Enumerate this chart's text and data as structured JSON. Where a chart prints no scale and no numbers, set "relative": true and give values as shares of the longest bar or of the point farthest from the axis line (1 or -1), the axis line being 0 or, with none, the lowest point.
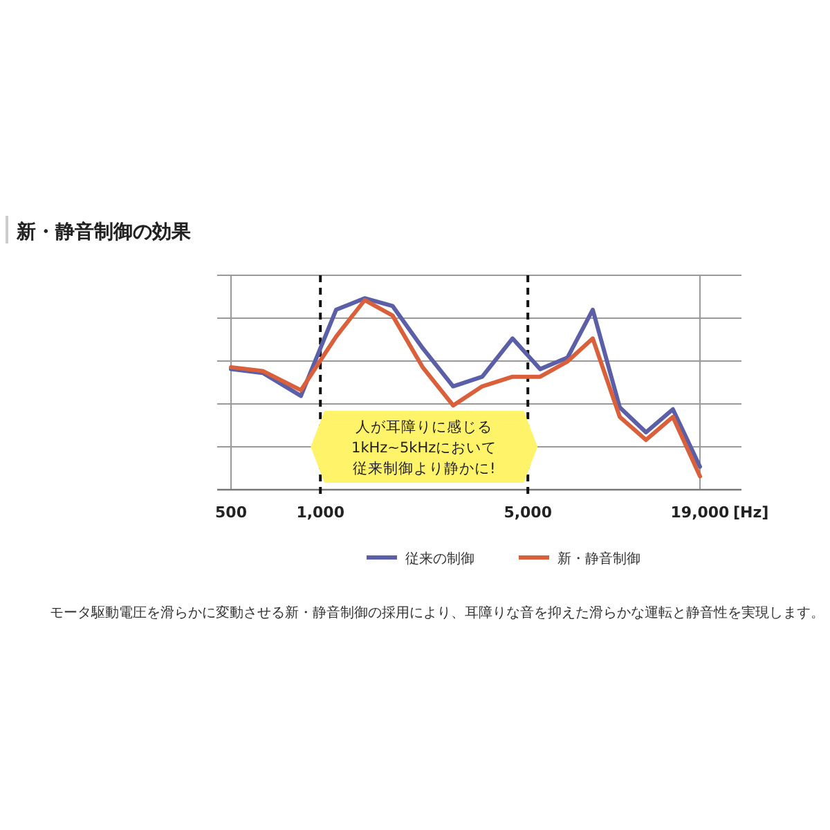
{
  "chart_data": {
    "type": "line",
    "title": "新・静音制御の効果",
    "xlabel": "[Hz]",
    "log": "x",
    "relative": true,
    "x": [
      500,
      640,
      860,
      1130,
      1410,
      1750,
      2210,
      2800,
      3510,
      4440,
      5500,
      6800,
      8270,
      10200,
      12500,
      15400,
      19000
    ],
    "xlim": [
      500,
      19000
    ],
    "xticks": [
      {
        "value": 500,
        "label": "500"
      },
      {
        "value": 1000,
        "label": "1,000"
      },
      {
        "value": 5000,
        "label": "5,000"
      },
      {
        "value": 19000,
        "label": "19,000"
      }
    ],
    "series": [
      {
        "name": "従来の制御",
        "color": "#5b5fa8",
        "values": [
          0.63,
          0.61,
          0.49,
          0.94,
          1,
          0.96,
          0.74,
          0.54,
          0.59,
          0.79,
          0.63,
          0.69,
          0.94,
          0.43,
          0.3,
          0.42,
          0.12
        ]
      },
      {
        "name": "新・静音制御",
        "color": "#d9603a",
        "values": [
          0.64,
          0.62,
          0.52,
          0.8,
          0.99,
          0.91,
          0.64,
          0.44,
          0.54,
          0.59,
          0.59,
          0.67,
          0.79,
          0.38,
          0.26,
          0.38,
          0.07
        ]
      }
    ],
    "ref_lines": [
      {
        "axis": "x",
        "value": 1000,
        "color": "#111111",
        "line_style": "dashed"
      },
      {
        "axis": "x",
        "value": 5000,
        "color": "#111111",
        "line_style": "dashed"
      }
    ],
    "annotations": [
      "人が耳障りに感じる",
      "1kHz~5kHzにおいて",
      "従来制御より静かに!",
      "モータ駆動電圧を滑らかに変動させる新・静音制御の採用により、耳障りな音を抑えた滑らかな運転と静音性を実現します。"
    ],
    "grid": true,
    "legend": "bottom",
    "marker": "none",
    "line_style": "solid"
  }
}
